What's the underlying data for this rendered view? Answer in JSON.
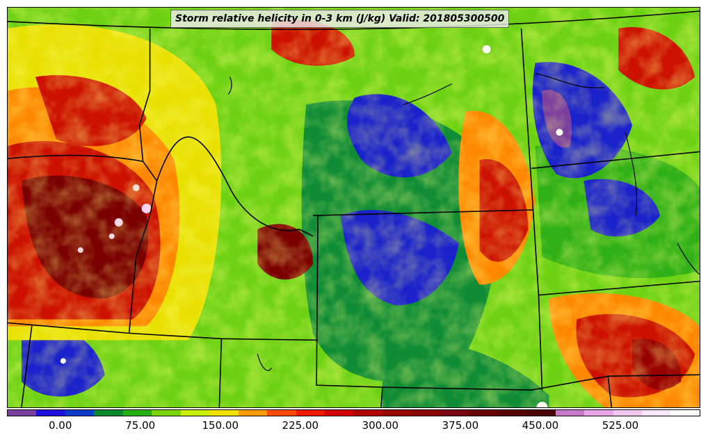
{
  "title": "Storm relative helicity in 0-3 km (J/kg) Valid: 201805300500",
  "colorbar": {
    "colors": [
      "#7b3fa0",
      "#2010e0",
      "#0a3cc8",
      "#0a8a30",
      "#23b012",
      "#7ad60a",
      "#c8f00a",
      "#f0e000",
      "#ff9a00",
      "#ff4a00",
      "#ee1a00",
      "#d40000",
      "#b00000",
      "#980000",
      "#880000",
      "#780010",
      "#680000",
      "#580000",
      "#4a0000",
      "#c878c8",
      "#e6a6e6",
      "#f0c8f0",
      "#fae6fa",
      "#ffffff"
    ],
    "ticks": [
      {
        "label": "0.00",
        "value": 0
      },
      {
        "label": "75.00",
        "value": 75
      },
      {
        "label": "150.00",
        "value": 150
      },
      {
        "label": "225.00",
        "value": 225
      },
      {
        "label": "300.00",
        "value": 300
      },
      {
        "label": "375.00",
        "value": 375
      },
      {
        "label": "450.00",
        "value": 450
      },
      {
        "label": "525.00",
        "value": 525
      }
    ],
    "range": [
      -50,
      600
    ]
  },
  "legend": {
    "red": "#cc1100",
    "darkred": "#7a0000",
    "green": "#0f8c35",
    "blue": "#1a22cc",
    "yellow": "#e8e000",
    "lime": "#6ed214",
    "purple": "#7b3fa0",
    "pink": "#f0c8f0"
  }
}
